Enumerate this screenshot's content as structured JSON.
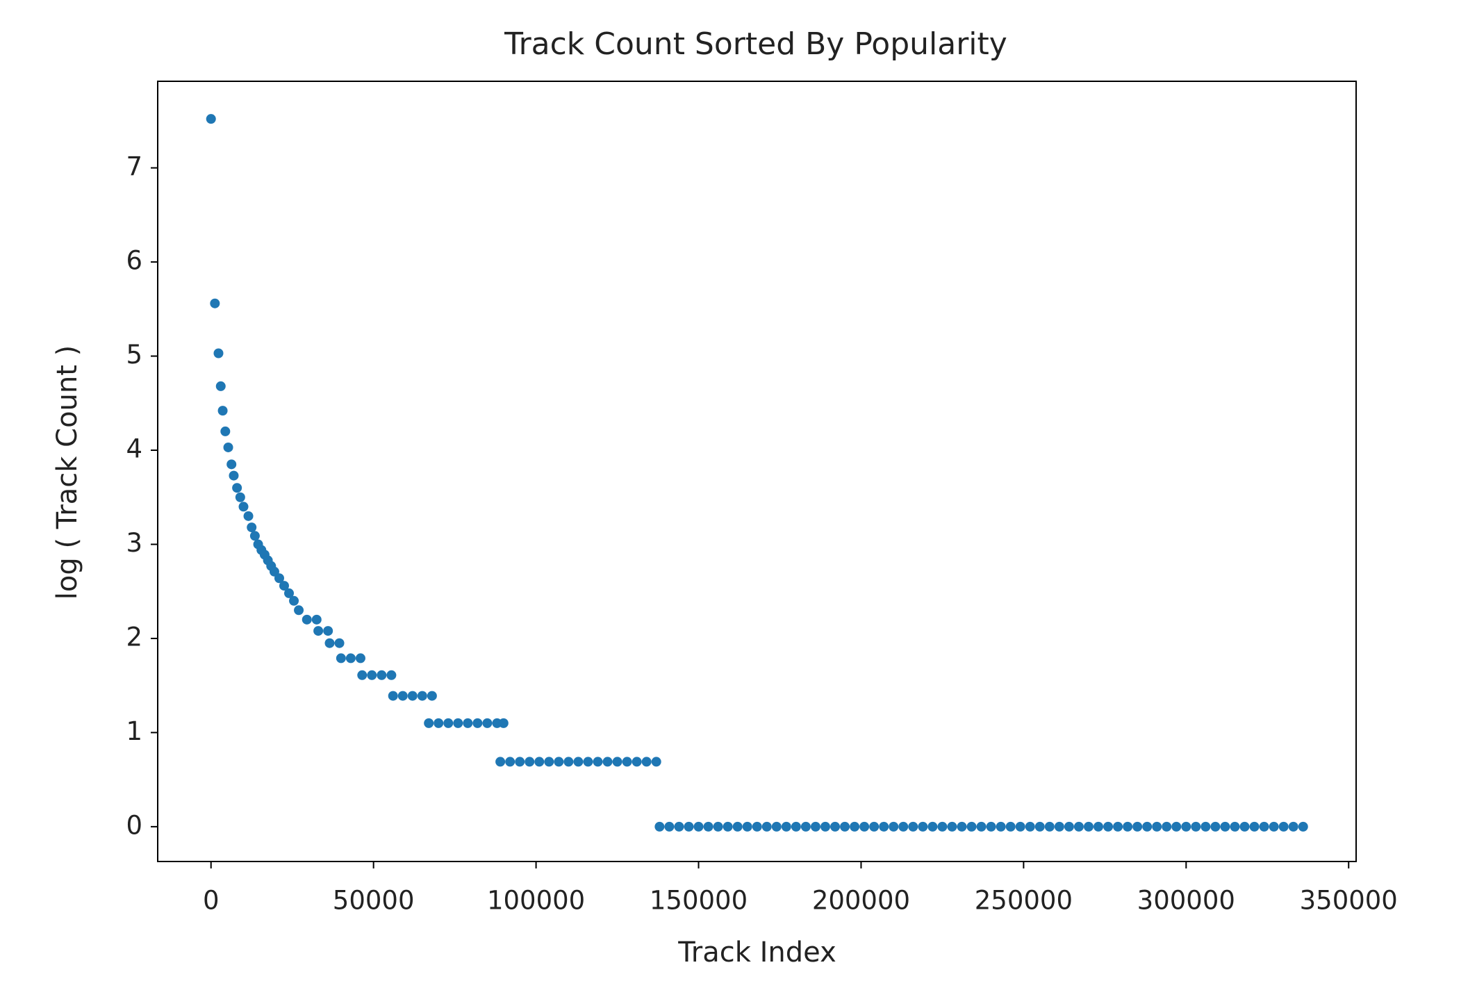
{
  "chart_data": {
    "type": "scatter",
    "title": "Track Count Sorted By Popularity",
    "x_label": "Track Index",
    "y_label": "log ( Track Count )",
    "color": "#1f77b4",
    "x": [
      0,
      1200,
      2300,
      3000,
      3600,
      4400,
      5300,
      6300,
      7000,
      8000,
      9000,
      10000,
      11500,
      12500,
      13500,
      14500,
      15500,
      16500,
      17500,
      18500,
      19500,
      21000,
      22500,
      24000,
      25500,
      27000,
      29500,
      32500,
      33000,
      36000,
      36500,
      39500,
      40000,
      43000,
      46000,
      46500,
      49500,
      52500,
      55500,
      56000,
      59000,
      62000,
      65000,
      68000,
      67000,
      70000,
      73000,
      76000,
      79000,
      82000,
      85000,
      88000,
      90000,
      89000,
      92000,
      95000,
      98000,
      101000,
      104000,
      107000,
      110000,
      113000,
      116000,
      119000,
      122000,
      125000,
      128000,
      131000,
      134000,
      137000,
      138000,
      141000,
      144000,
      147000,
      150000,
      153000,
      156000,
      159000,
      162000,
      165000,
      168000,
      171000,
      174000,
      177000,
      180000,
      183000,
      186000,
      189000,
      192000,
      195000,
      198000,
      201000,
      204000,
      207000,
      210000,
      213000,
      216000,
      219000,
      222000,
      225000,
      228000,
      231000,
      234000,
      237000,
      240000,
      243000,
      246000,
      249000,
      252000,
      255000,
      258000,
      261000,
      264000,
      267000,
      270000,
      273000,
      276000,
      279000,
      282000,
      285000,
      288000,
      291000,
      294000,
      297000,
      300000,
      303000,
      306000,
      309000,
      312000,
      315000,
      318000,
      321000,
      324000,
      327000,
      330000,
      333000,
      336000
    ],
    "values": [
      7.52,
      5.56,
      5.03,
      4.68,
      4.42,
      4.2,
      4.03,
      3.85,
      3.73,
      3.6,
      3.5,
      3.4,
      3.3,
      3.18,
      3.09,
      3.0,
      2.94,
      2.89,
      2.83,
      2.77,
      2.71,
      2.64,
      2.56,
      2.48,
      2.4,
      2.3,
      2.2,
      2.2,
      2.08,
      2.08,
      1.95,
      1.95,
      1.79,
      1.79,
      1.79,
      1.61,
      1.61,
      1.61,
      1.61,
      1.39,
      1.39,
      1.39,
      1.39,
      1.39,
      1.1,
      1.1,
      1.1,
      1.1,
      1.1,
      1.1,
      1.1,
      1.1,
      1.1,
      0.69,
      0.69,
      0.69,
      0.69,
      0.69,
      0.69,
      0.69,
      0.69,
      0.69,
      0.69,
      0.69,
      0.69,
      0.69,
      0.69,
      0.69,
      0.69,
      0.69,
      0,
      0,
      0,
      0,
      0,
      0,
      0,
      0,
      0,
      0,
      0,
      0,
      0,
      0,
      0,
      0,
      0,
      0,
      0,
      0,
      0,
      0,
      0,
      0,
      0,
      0,
      0,
      0,
      0,
      0,
      0,
      0,
      0,
      0,
      0,
      0,
      0,
      0,
      0,
      0,
      0,
      0,
      0,
      0,
      0,
      0,
      0,
      0,
      0,
      0,
      0,
      0,
      0,
      0,
      0,
      0,
      0,
      0,
      0,
      0,
      0,
      0,
      0,
      0,
      0,
      0,
      0
    ],
    "xlim": [
      -16400,
      352300
    ],
    "ylim": [
      -0.37,
      7.92
    ],
    "xticks": [
      0,
      50000,
      100000,
      150000,
      200000,
      250000,
      300000,
      350000
    ],
    "yticks": [
      0,
      1,
      2,
      3,
      4,
      5,
      6,
      7
    ]
  }
}
